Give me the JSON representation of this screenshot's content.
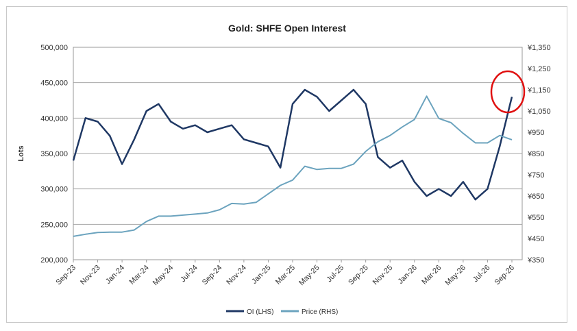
{
  "chart_data": {
    "type": "line",
    "title": "Gold: SHFE Open Interest",
    "ylabel_left": "Lots",
    "ylabel_right": "",
    "x_tick_labels": [
      "Sep-23",
      "Nov-23",
      "Jan-24",
      "Mar-24",
      "May-24",
      "Jul-24",
      "Sep-24",
      "Nov-24",
      "Jan-25",
      "Mar-25",
      "May-25",
      "Jul-25",
      "Sep-25",
      "Nov-25",
      "Jan-26",
      "Mar-26",
      "May-26",
      "Jul-26",
      "Sep-26"
    ],
    "y_left_ticks": [
      "200,000",
      "250,000",
      "300,000",
      "350,000",
      "400,000",
      "450,000",
      "500,000"
    ],
    "y_right_ticks": [
      "¥350",
      "¥450",
      "¥550",
      "¥650",
      "¥750",
      "¥850",
      "¥950",
      "¥1,050",
      "¥1,150",
      "¥1,250",
      "¥1,350"
    ],
    "ylim_left": [
      200000,
      500000
    ],
    "ylim_right": [
      350,
      1350
    ],
    "grid": "horizontal",
    "legend_position": "bottom",
    "annotation": "red circle around latest open interest spike",
    "series": [
      {
        "name": "OI (LHS)",
        "axis": "left",
        "color": "#1f3864",
        "points": [
          [
            "Sep-23",
            340000
          ],
          [
            "Oct-23",
            400000
          ],
          [
            "Nov-23",
            395000
          ],
          [
            "Dec-23",
            375000
          ],
          [
            "Jan-24",
            335000
          ],
          [
            "Feb-24",
            370000
          ],
          [
            "Mar-24",
            410000
          ],
          [
            "Apr-24",
            420000
          ],
          [
            "May-24",
            395000
          ],
          [
            "Jun-24",
            385000
          ],
          [
            "Jul-24",
            390000
          ],
          [
            "Aug-24",
            380000
          ],
          [
            "Sep-24",
            385000
          ],
          [
            "Oct-24",
            390000
          ],
          [
            "Nov-24",
            370000
          ],
          [
            "Dec-24",
            365000
          ],
          [
            "Jan-25",
            360000
          ],
          [
            "Feb-25",
            330000
          ],
          [
            "Mar-25",
            420000
          ],
          [
            "Apr-25",
            440000
          ],
          [
            "May-25",
            430000
          ],
          [
            "Jun-25",
            410000
          ],
          [
            "Jul-25",
            425000
          ],
          [
            "Aug-25",
            440000
          ],
          [
            "Sep-25",
            420000
          ],
          [
            "Oct-25",
            345000
          ],
          [
            "Nov-25",
            330000
          ],
          [
            "Dec-25",
            340000
          ],
          [
            "Jan-26",
            310000
          ],
          [
            "Feb-26",
            290000
          ],
          [
            "Mar-26",
            300000
          ],
          [
            "Apr-26",
            290000
          ],
          [
            "May-26",
            310000
          ],
          [
            "Jun-26",
            285000
          ],
          [
            "Jul-26",
            300000
          ],
          [
            "Aug-26",
            360000
          ],
          [
            "Sep-26",
            430000
          ]
        ]
      },
      {
        "name": "Price (RHS)",
        "axis": "right",
        "color": "#6ba3be",
        "points": [
          [
            "Sep-23",
            460
          ],
          [
            "Oct-23",
            470
          ],
          [
            "Nov-23",
            478
          ],
          [
            "Dec-23",
            480
          ],
          [
            "Jan-24",
            480
          ],
          [
            "Feb-24",
            490
          ],
          [
            "Mar-24",
            530
          ],
          [
            "Apr-24",
            555
          ],
          [
            "May-24",
            555
          ],
          [
            "Jun-24",
            560
          ],
          [
            "Jul-24",
            565
          ],
          [
            "Aug-24",
            570
          ],
          [
            "Sep-24",
            585
          ],
          [
            "Oct-24",
            615
          ],
          [
            "Nov-24",
            612
          ],
          [
            "Dec-24",
            620
          ],
          [
            "Jan-25",
            660
          ],
          [
            "Feb-25",
            700
          ],
          [
            "Mar-25",
            725
          ],
          [
            "Apr-25",
            790
          ],
          [
            "May-25",
            775
          ],
          [
            "Jun-25",
            780
          ],
          [
            "Jul-25",
            780
          ],
          [
            "Aug-25",
            800
          ],
          [
            "Sep-25",
            860
          ],
          [
            "Oct-25",
            905
          ],
          [
            "Nov-25",
            935
          ],
          [
            "Dec-25",
            975
          ],
          [
            "Jan-26",
            1010
          ],
          [
            "Feb-26",
            1120
          ],
          [
            "Mar-26",
            1015
          ],
          [
            "Apr-26",
            995
          ],
          [
            "May-26",
            945
          ],
          [
            "Jun-26",
            900
          ],
          [
            "Jul-26",
            900
          ],
          [
            "Aug-26",
            935
          ],
          [
            "Sep-26",
            915
          ]
        ]
      }
    ]
  }
}
